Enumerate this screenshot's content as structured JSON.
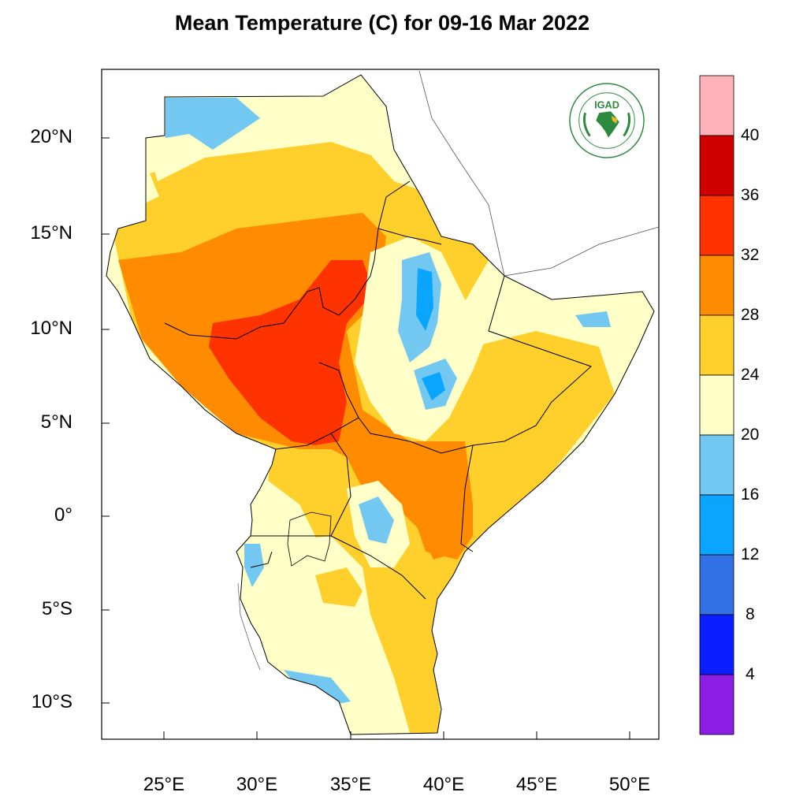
{
  "title": "Mean Temperature (C) for 09-16 Mar 2022",
  "logo": {
    "text": "IGAD",
    "ring_text_top": "INTERGOVERNMENTAL AUTHORITY ON DEVELOPMENT",
    "ring_text_bottom": "AUTORITE INTERGOUVERNEMENTALE POUR LE DEVELOPPEMENT"
  },
  "lat_labels": [
    "20°N",
    "15°N",
    "10°N",
    "5°N",
    "0°",
    "5°S",
    "10°S"
  ],
  "lon_labels": [
    "25°E",
    "30°E",
    "35°E",
    "40°E",
    "45°E",
    "50°E"
  ],
  "colorbar": {
    "labels": [
      "40",
      "36",
      "32",
      "28",
      "24",
      "20",
      "16",
      "12",
      "8",
      "4"
    ],
    "colors": [
      "#ffb3b8",
      "#d00000",
      "#ff3300",
      "#ff8c00",
      "#ffd02b",
      "#ffffc8",
      "#73c8f2",
      "#0aa5ff",
      "#3270e6",
      "#0a1eff",
      "#8c1ee6"
    ]
  },
  "colors": {
    "t20_24": "#ffffc8",
    "t24_28": "#ffd02b",
    "t28_32": "#ff8c00",
    "t32_36": "#ff3300",
    "t16_20": "#73c8f2",
    "t12_16": "#0aa5ff",
    "t8_12": "#3270e6",
    "logo_green": "#2b8a3e"
  }
}
